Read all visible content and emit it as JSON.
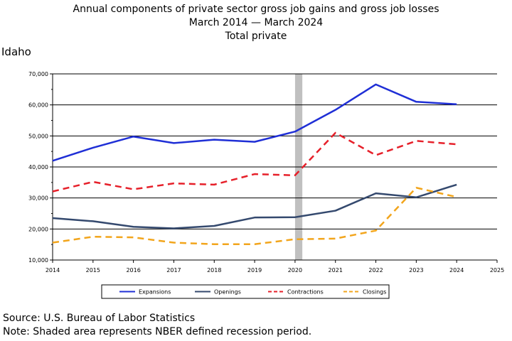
{
  "chart_data": {
    "type": "line",
    "title": "Annual components of private sector gross job gains and gross job losses",
    "subtitle": "March 2014 — March 2024",
    "subtitle2": "Total private",
    "region": "Idaho",
    "x": [
      2014,
      2015,
      2016,
      2017,
      2018,
      2019,
      2020,
      2021,
      2022,
      2023,
      2024
    ],
    "x_ticks": [
      "2014",
      "2015",
      "2016",
      "2017",
      "2018",
      "2019",
      "2020",
      "2021",
      "2022",
      "2023",
      "2024",
      "2025"
    ],
    "xlim": [
      2014,
      2025
    ],
    "ylim": [
      10000,
      70000
    ],
    "y_ticks": [
      10000,
      20000,
      30000,
      40000,
      50000,
      60000,
      70000
    ],
    "y_tick_labels": [
      "10,000",
      "20,000",
      "30,000",
      "40,000",
      "50,000",
      "60,000",
      "70,000"
    ],
    "grid": "horizontal",
    "recession": {
      "start": 2020.0,
      "end": 2020.18,
      "color": "#c0c0c0"
    },
    "legend_position": "bottom",
    "series": [
      {
        "name": "Expansions",
        "color": "#1f2fd6",
        "dash": "solid",
        "values": [
          42000,
          46200,
          49800,
          47700,
          48800,
          48100,
          51400,
          58400,
          66600,
          61000,
          60200
        ]
      },
      {
        "name": "Openings",
        "color": "#34496e",
        "dash": "solid",
        "values": [
          23500,
          22500,
          20700,
          20200,
          21000,
          23700,
          23800,
          25900,
          31500,
          30200,
          34300
        ]
      },
      {
        "name": "Contractions",
        "color": "#e6202a",
        "dash": "dash",
        "values": [
          32100,
          35200,
          32800,
          34700,
          34300,
          37700,
          37300,
          51000,
          43800,
          48400,
          47300
        ]
      },
      {
        "name": "Closings",
        "color": "#f2a51c",
        "dash": "dash",
        "values": [
          15600,
          17500,
          17300,
          15600,
          15100,
          15100,
          16700,
          16900,
          19500,
          33300,
          30300
        ]
      }
    ]
  },
  "footer": {
    "source": "Source: U.S. Bureau of Labor Statistics",
    "note": "Note: Shaded area represents NBER defined recession period."
  }
}
